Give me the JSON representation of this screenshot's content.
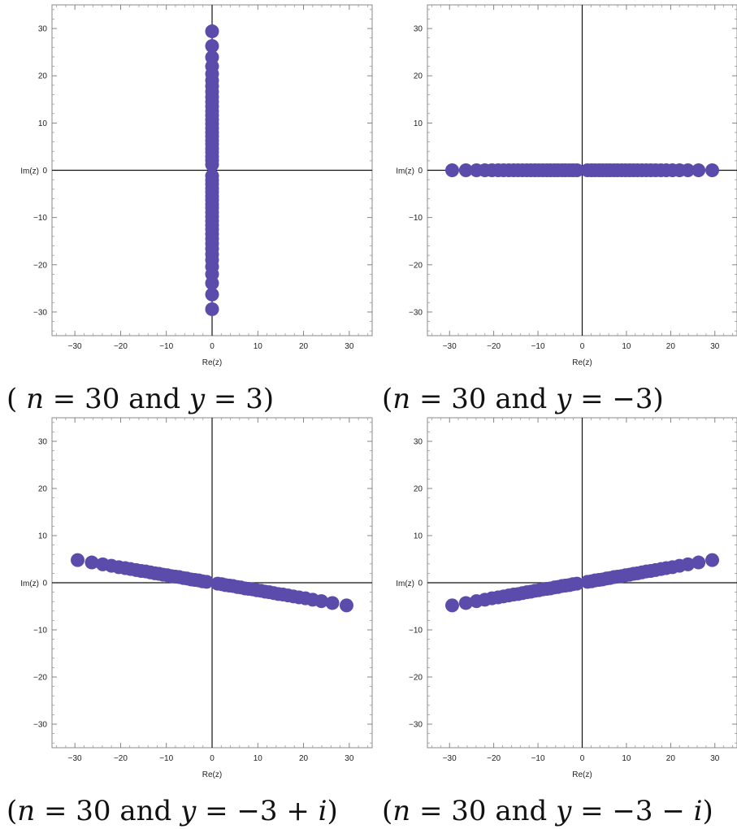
{
  "chart_data": [
    {
      "type": "scatter",
      "title": "",
      "xlabel": "Re(z)",
      "ylabel": "Im(z)",
      "xlim": [
        -35,
        35
      ],
      "ylim": [
        -35,
        35
      ],
      "xticks": [
        -30,
        -20,
        -10,
        0,
        10,
        20,
        30
      ],
      "yticks": [
        -30,
        -20,
        -10,
        0,
        10,
        20,
        30
      ],
      "grid": false,
      "legend": "none",
      "marker_color": "#5b4bab",
      "caption": {
        "before": "( ",
        "n_var": "n",
        "middle": " = 30 and ",
        "y_var": "y",
        "after": " = 3)"
      },
      "series": [
        {
          "x": [
            0,
            0,
            0,
            0,
            0,
            0,
            0,
            0,
            0,
            0,
            0,
            0,
            0,
            0,
            0,
            0,
            0,
            0,
            0,
            0,
            0,
            0,
            0,
            0,
            0,
            0,
            0,
            0,
            0,
            0,
            0,
            0,
            0,
            0,
            0,
            0,
            0,
            0,
            0,
            0,
            0,
            0,
            0,
            0,
            0,
            0,
            0,
            0,
            0,
            0
          ],
          "y": [
            29.4,
            26.3,
            23.9,
            22.0,
            20.4,
            19.0,
            17.8,
            16.6,
            15.5,
            14.5,
            13.5,
            12.5,
            11.6,
            10.7,
            9.8,
            8.9,
            8.0,
            7.2,
            6.3,
            5.5,
            4.6,
            3.8,
            2.9,
            2.1,
            1.2,
            -1.2,
            -2.1,
            -2.9,
            -3.8,
            -4.6,
            -5.5,
            -6.3,
            -7.2,
            -8.0,
            -8.9,
            -9.8,
            -10.7,
            -11.6,
            -12.5,
            -13.5,
            -14.5,
            -15.5,
            -16.6,
            -17.8,
            -19.0,
            -20.4,
            -22.0,
            -23.9,
            -26.3,
            -29.4
          ]
        }
      ]
    },
    {
      "type": "scatter",
      "title": "",
      "xlabel": "Re(z)",
      "ylabel": "Im(z)",
      "xlim": [
        -35,
        35
      ],
      "ylim": [
        -35,
        35
      ],
      "xticks": [
        -30,
        -20,
        -10,
        0,
        10,
        20,
        30
      ],
      "yticks": [
        -30,
        -20,
        -10,
        0,
        10,
        20,
        30
      ],
      "grid": false,
      "legend": "none",
      "marker_color": "#5b4bab",
      "caption": {
        "before": "(",
        "n_var": "n",
        "middle": " = 30 and ",
        "y_var": "y",
        "after": " = −3)"
      },
      "series": [
        {
          "x": [
            -29.4,
            -26.3,
            -23.9,
            -22.0,
            -20.4,
            -19.0,
            -17.8,
            -16.6,
            -15.5,
            -14.5,
            -13.5,
            -12.5,
            -11.6,
            -10.7,
            -9.8,
            -8.9,
            -8.0,
            -7.2,
            -6.3,
            -5.5,
            -4.6,
            -3.8,
            -2.9,
            -2.1,
            -1.2,
            1.2,
            2.1,
            2.9,
            3.8,
            4.6,
            5.5,
            6.3,
            7.2,
            8.0,
            8.9,
            9.8,
            10.7,
            11.6,
            12.5,
            13.5,
            14.5,
            15.5,
            16.6,
            17.8,
            19.0,
            20.4,
            22.0,
            23.9,
            26.3,
            29.4
          ],
          "y": [
            0,
            0,
            0,
            0,
            0,
            0,
            0,
            0,
            0,
            0,
            0,
            0,
            0,
            0,
            0,
            0,
            0,
            0,
            0,
            0,
            0,
            0,
            0,
            0,
            0,
            0,
            0,
            0,
            0,
            0,
            0,
            0,
            0,
            0,
            0,
            0,
            0,
            0,
            0,
            0,
            0,
            0,
            0,
            0,
            0,
            0,
            0,
            0,
            0,
            0
          ]
        }
      ]
    },
    {
      "type": "scatter",
      "title": "",
      "xlabel": "Re(z)",
      "ylabel": "Im(z)",
      "xlim": [
        -35,
        35
      ],
      "ylim": [
        -35,
        35
      ],
      "xticks": [
        -30,
        -20,
        -10,
        0,
        10,
        20,
        30
      ],
      "yticks": [
        -30,
        -20,
        -10,
        0,
        10,
        20,
        30
      ],
      "grid": false,
      "legend": "none",
      "marker_color": "#5b4bab",
      "caption": {
        "before": "(",
        "n_var": "n",
        "middle": " = 30 and ",
        "y_var": "y",
        "after": " = −3 + ",
        "i_var": "i",
        "end": ")"
      },
      "series": [
        {
          "x": [
            -29.4,
            -26.3,
            -23.9,
            -22.0,
            -20.4,
            -19.0,
            -17.8,
            -16.6,
            -15.5,
            -14.5,
            -13.5,
            -12.5,
            -11.6,
            -10.7,
            -9.8,
            -8.9,
            -8.0,
            -7.2,
            -6.3,
            -5.5,
            -4.6,
            -3.8,
            -2.9,
            -2.1,
            -1.2,
            1.2,
            2.1,
            2.9,
            3.8,
            4.6,
            5.5,
            6.3,
            7.2,
            8.0,
            8.9,
            9.8,
            10.7,
            11.6,
            12.5,
            13.5,
            14.5,
            15.5,
            16.6,
            17.8,
            19.0,
            20.4,
            22.0,
            23.9,
            26.3,
            29.4
          ],
          "y": [
            4.8,
            4.3,
            3.9,
            3.6,
            3.3,
            3.1,
            2.9,
            2.7,
            2.5,
            2.4,
            2.2,
            2.0,
            1.9,
            1.7,
            1.6,
            1.4,
            1.3,
            1.2,
            1.0,
            0.9,
            0.7,
            0.6,
            0.5,
            0.3,
            0.2,
            -0.2,
            -0.3,
            -0.5,
            -0.6,
            -0.7,
            -0.9,
            -1.0,
            -1.2,
            -1.3,
            -1.4,
            -1.6,
            -1.7,
            -1.9,
            -2.0,
            -2.2,
            -2.4,
            -2.5,
            -2.7,
            -2.9,
            -3.1,
            -3.3,
            -3.6,
            -3.9,
            -4.3,
            -4.8
          ]
        }
      ]
    },
    {
      "type": "scatter",
      "title": "",
      "xlabel": "Re(z)",
      "ylabel": "Im(z)",
      "xlim": [
        -35,
        35
      ],
      "ylim": [
        -35,
        35
      ],
      "xticks": [
        -30,
        -20,
        -10,
        0,
        10,
        20,
        30
      ],
      "yticks": [
        -30,
        -20,
        -10,
        0,
        10,
        20,
        30
      ],
      "grid": false,
      "legend": "none",
      "marker_color": "#5b4bab",
      "caption": {
        "before": "(",
        "n_var": "n",
        "middle": " = 30 and ",
        "y_var": "y",
        "after": " = −3 − ",
        "i_var": "i",
        "end": ")"
      },
      "series": [
        {
          "x": [
            -29.4,
            -26.3,
            -23.9,
            -22.0,
            -20.4,
            -19.0,
            -17.8,
            -16.6,
            -15.5,
            -14.5,
            -13.5,
            -12.5,
            -11.6,
            -10.7,
            -9.8,
            -8.9,
            -8.0,
            -7.2,
            -6.3,
            -5.5,
            -4.6,
            -3.8,
            -2.9,
            -2.1,
            -1.2,
            1.2,
            2.1,
            2.9,
            3.8,
            4.6,
            5.5,
            6.3,
            7.2,
            8.0,
            8.9,
            9.8,
            10.7,
            11.6,
            12.5,
            13.5,
            14.5,
            15.5,
            16.6,
            17.8,
            19.0,
            20.4,
            22.0,
            23.9,
            26.3,
            29.4
          ],
          "y": [
            -4.8,
            -4.3,
            -3.9,
            -3.6,
            -3.3,
            -3.1,
            -2.9,
            -2.7,
            -2.5,
            -2.4,
            -2.2,
            -2.0,
            -1.9,
            -1.7,
            -1.6,
            -1.4,
            -1.3,
            -1.2,
            -1.0,
            -0.9,
            -0.7,
            -0.6,
            -0.5,
            -0.3,
            -0.2,
            0.2,
            0.3,
            0.5,
            0.6,
            0.7,
            0.9,
            1.0,
            1.2,
            1.3,
            1.4,
            1.6,
            1.7,
            1.9,
            2.0,
            2.2,
            2.4,
            2.5,
            2.7,
            2.9,
            3.1,
            3.3,
            3.6,
            3.9,
            4.3,
            4.8
          ]
        }
      ]
    }
  ]
}
